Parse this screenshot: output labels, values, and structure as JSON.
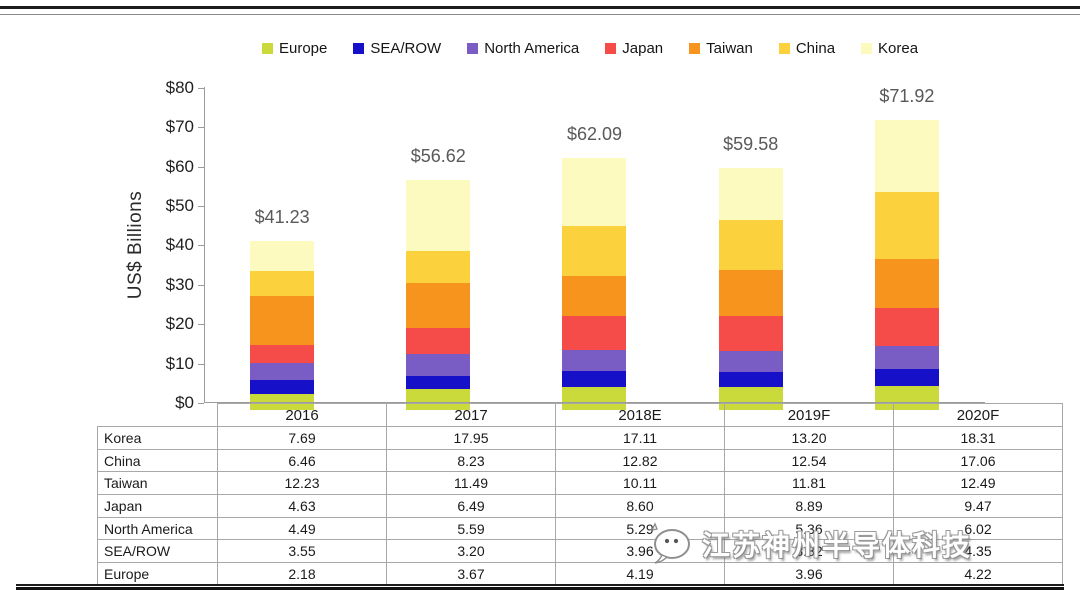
{
  "chart_data": {
    "type": "bar",
    "subtype": "stacked",
    "title": "",
    "xlabel": "",
    "ylabel": "US$ Billions",
    "ylim": [
      0,
      80
    ],
    "ytick_step": 10,
    "ytick_prefix": "$",
    "grid": false,
    "legend_position": "top",
    "categories": [
      "2016",
      "2017",
      "2018E",
      "2019F",
      "2020F"
    ],
    "totals": [
      "$41.23",
      "$56.62",
      "$62.09",
      "$59.58",
      "$71.92"
    ],
    "series": [
      {
        "name": "Europe",
        "color": "#c9da3a",
        "values": [
          2.18,
          3.67,
          4.19,
          3.96,
          4.22
        ]
      },
      {
        "name": "SEA/ROW",
        "color": "#1710c9",
        "values": [
          3.55,
          3.2,
          3.96,
          3.82,
          4.35
        ]
      },
      {
        "name": "North America",
        "color": "#7a5cc5",
        "values": [
          4.49,
          5.59,
          5.29,
          5.36,
          6.02
        ]
      },
      {
        "name": "Japan",
        "color": "#f54b49",
        "values": [
          4.63,
          6.49,
          8.6,
          8.89,
          9.47
        ]
      },
      {
        "name": "Taiwan",
        "color": "#f7941e",
        "values": [
          12.23,
          11.49,
          10.11,
          11.81,
          12.49
        ]
      },
      {
        "name": "China",
        "color": "#fbd13e",
        "values": [
          6.46,
          8.23,
          12.82,
          12.54,
          17.06
        ]
      },
      {
        "name": "Korea",
        "color": "#fdfac0",
        "values": [
          7.69,
          17.95,
          17.11,
          13.2,
          18.31
        ]
      }
    ],
    "stack_order_bottom_to_top": [
      "Europe",
      "SEA/ROW",
      "North America",
      "Japan",
      "Taiwan",
      "China",
      "Korea"
    ]
  },
  "table": {
    "col_headers": [
      "2016",
      "2017",
      "2018E",
      "2019F",
      "2020F"
    ],
    "rows": [
      {
        "label": "Korea",
        "values": [
          "7.69",
          "17.95",
          "17.11",
          "13.20",
          "18.31"
        ]
      },
      {
        "label": "China",
        "values": [
          "6.46",
          "8.23",
          "12.82",
          "12.54",
          "17.06"
        ]
      },
      {
        "label": "Taiwan",
        "values": [
          "12.23",
          "11.49",
          "10.11",
          "11.81",
          "12.49"
        ]
      },
      {
        "label": "Japan",
        "values": [
          "4.63",
          "6.49",
          "8.60",
          "8.89",
          "9.47"
        ]
      },
      {
        "label": "North America",
        "values": [
          "4.49",
          "5.59",
          "5.29",
          "5.36",
          "6.02"
        ]
      },
      {
        "label": "SEA/ROW",
        "values": [
          "3.55",
          "3.20",
          "3.96",
          "3.82",
          "4.35"
        ]
      },
      {
        "label": "Europe",
        "values": [
          "2.18",
          "3.67",
          "4.19",
          "3.96",
          "4.22"
        ]
      }
    ]
  },
  "watermark": {
    "text": "江苏神州半导体科技",
    "icon": "chat-bubble-logo"
  }
}
